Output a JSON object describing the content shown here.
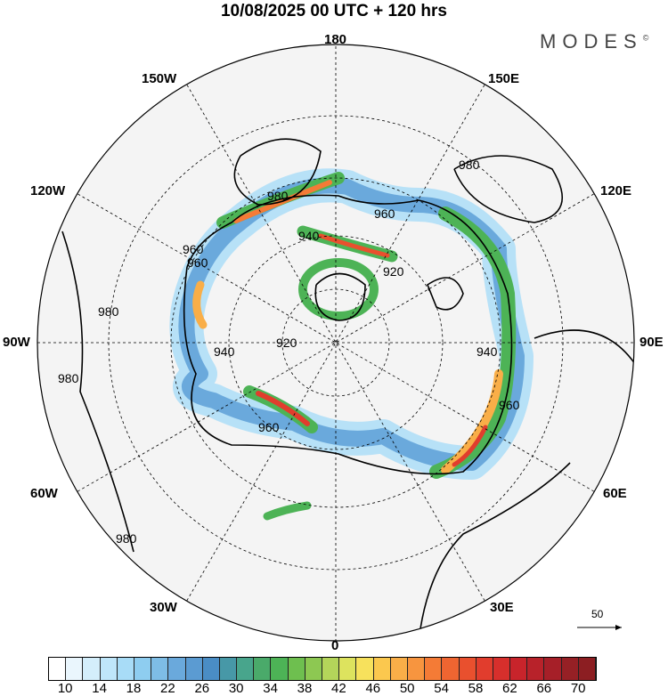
{
  "title": "10/08/2025  00 UTC  + 120 hrs",
  "logo": "MODES",
  "logo_mark": "©",
  "longitude_labels": {
    "n": "180",
    "nw": "150W",
    "ne": "150E",
    "wnw": "120W",
    "ene": "120E",
    "w": "90W",
    "e": "90E",
    "wsw": "60W",
    "esw": "60E",
    "ssw": "30W",
    "sse": "30E",
    "s": "0"
  },
  "contour_labels": [
    "980",
    "960",
    "940",
    "920",
    "960",
    "940",
    "980",
    "960",
    "920",
    "940",
    "960",
    "980",
    "980",
    "980",
    "960"
  ],
  "vector_scale_label": "50",
  "colorbar": {
    "labels": [
      "10",
      "14",
      "18",
      "22",
      "26",
      "30",
      "34",
      "38",
      "42",
      "46",
      "50",
      "54",
      "58",
      "62",
      "66",
      "70"
    ],
    "colors": [
      "#ffffff",
      "#eaf6fd",
      "#d4eefb",
      "#bfe6fa",
      "#a8dcf7",
      "#8ecdf0",
      "#7ebde6",
      "#6aa9dc",
      "#5b9bd2",
      "#4a8dc5",
      "#4798a7",
      "#48a58c",
      "#4aaa6a",
      "#4db356",
      "#6ebf4f",
      "#8dc852",
      "#b4d55a",
      "#dde35e",
      "#f7e15c",
      "#fbc84e",
      "#f9ae48",
      "#f7953f",
      "#f47b36",
      "#ef6531",
      "#e9502e",
      "#e13d2d",
      "#d72f2c",
      "#c8242b",
      "#b8222a",
      "#a61f28",
      "#962025",
      "#8c1e22"
    ]
  }
}
